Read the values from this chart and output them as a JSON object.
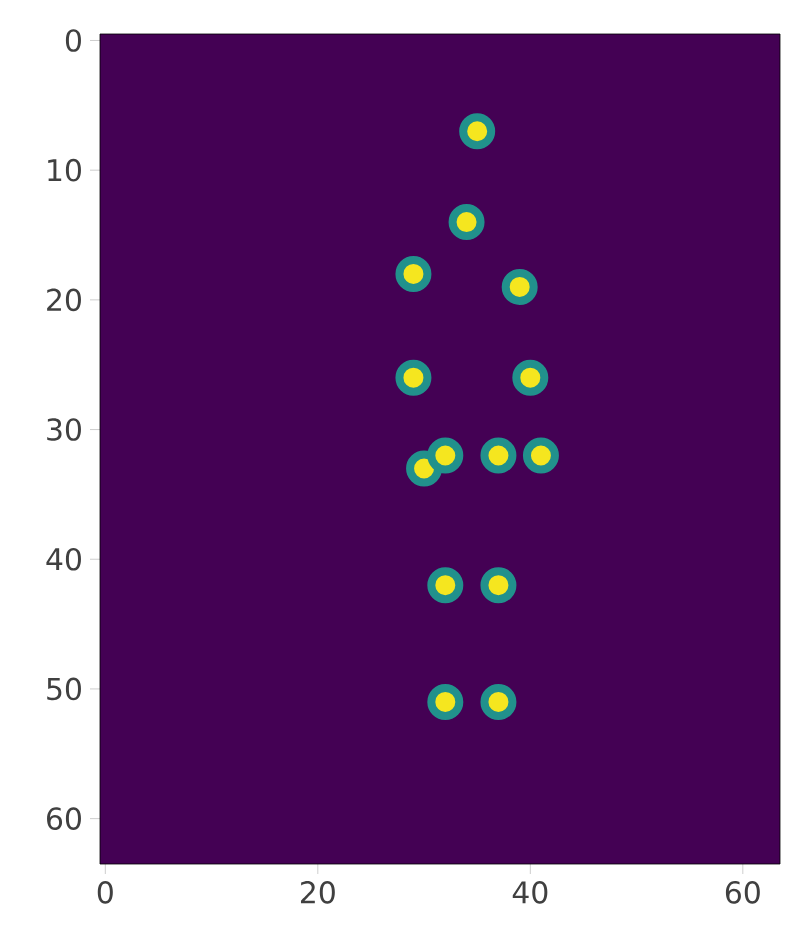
{
  "chart_data": {
    "type": "scatter",
    "color": "#f5e61f",
    "x": [
      35,
      34,
      29,
      39,
      29,
      40,
      30,
      32,
      37,
      41,
      32,
      37,
      32,
      37
    ],
    "values": [
      7,
      14,
      18,
      19,
      26,
      26,
      33,
      32,
      32,
      32,
      42,
      42,
      51,
      51
    ],
    "xlim": [
      -0.5,
      63.5
    ],
    "ylim": [
      63.5,
      -0.5
    ],
    "xticks": [
      0,
      20,
      40,
      60
    ],
    "yticks": [
      0,
      10,
      20,
      30,
      40,
      50,
      60
    ]
  }
}
